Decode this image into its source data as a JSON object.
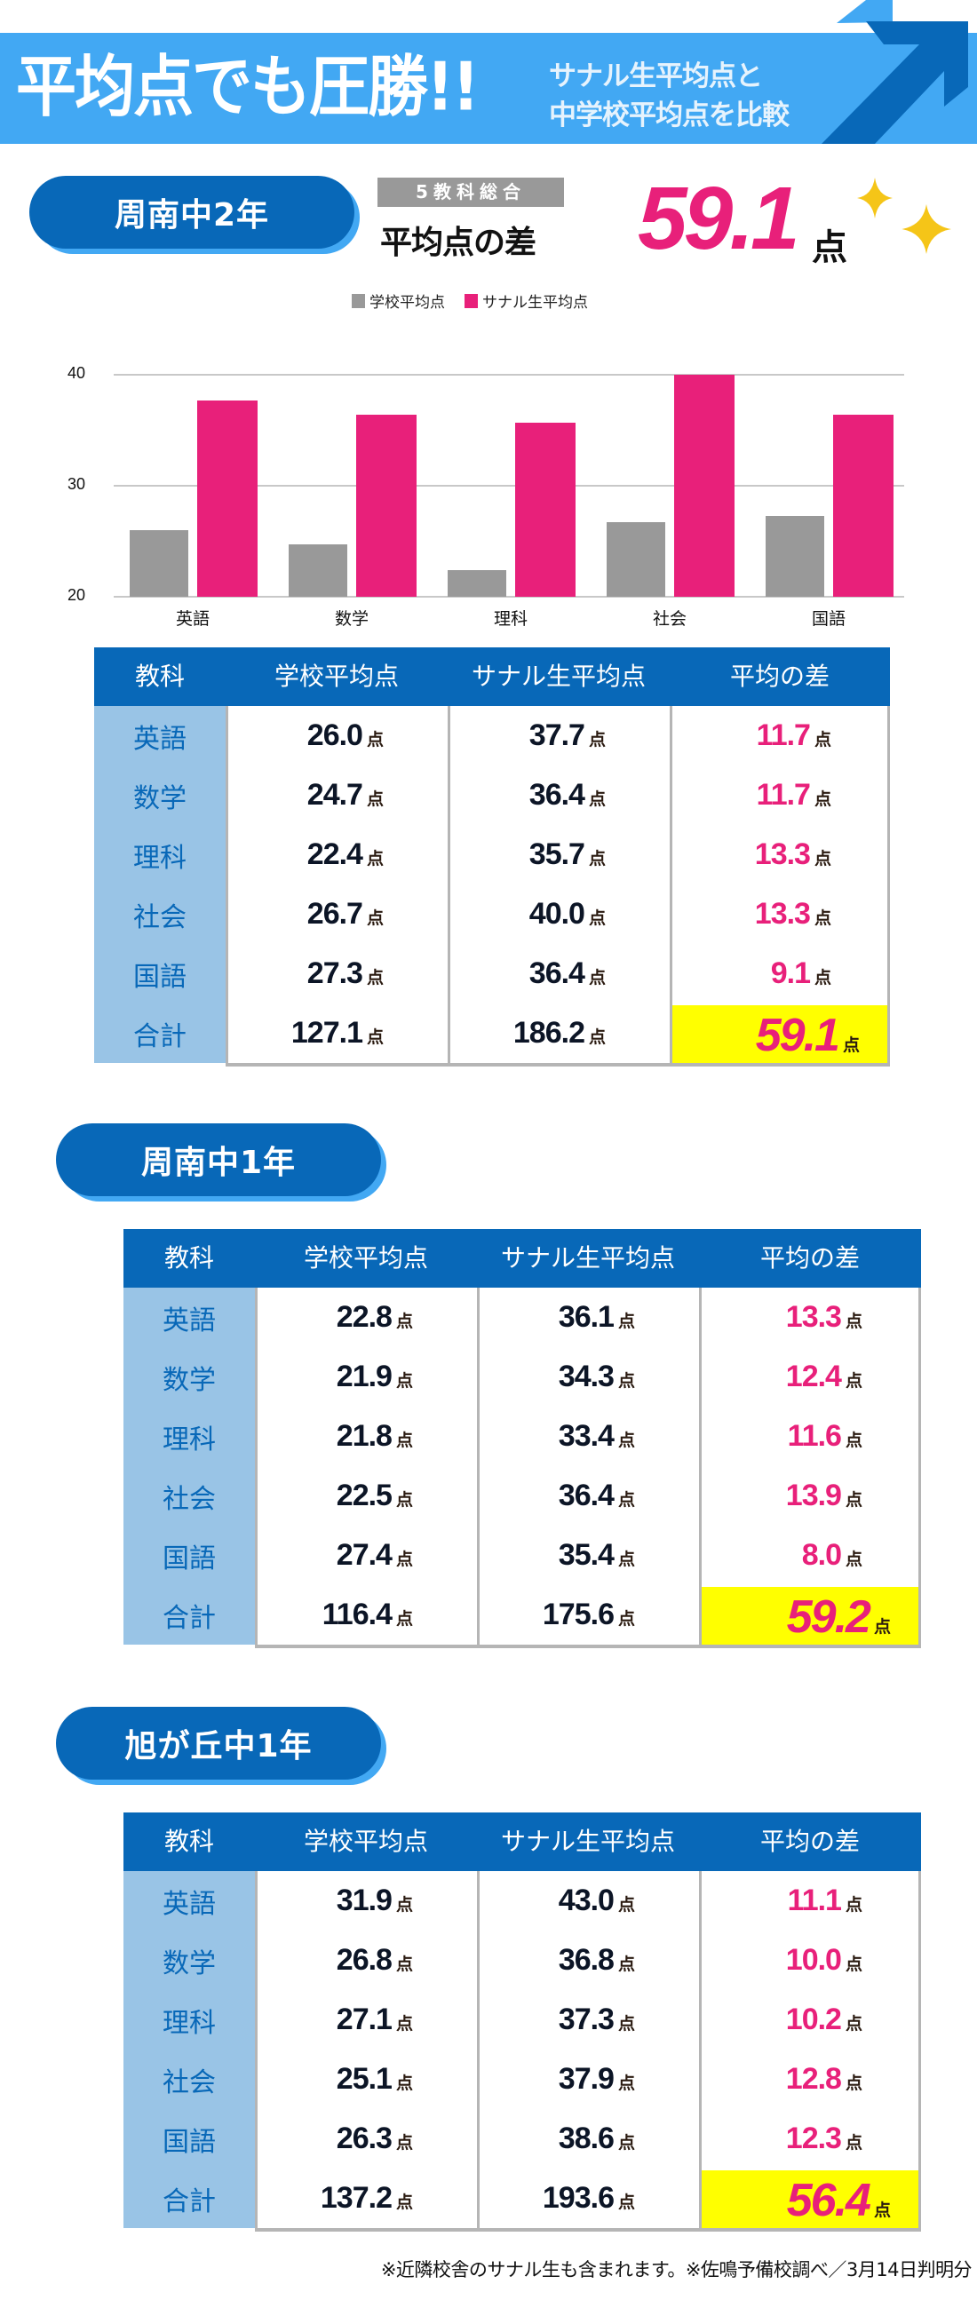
{
  "banner": {
    "title": "平均点でも圧勝!!",
    "subtitle_line1": "サナル生平均点と",
    "subtitle_line2": "中学校平均点を比較",
    "icon": "arrow-up-right-icon"
  },
  "colors": {
    "banner_blue": "#42a8f3",
    "dark_blue": "#0868b8",
    "subject_col_bg": "#99c4e6",
    "school_gray": "#999999",
    "sanaru_pink": "#e8207a",
    "total_highlight": "#ffff00",
    "sparkle_gold": "#f5c518"
  },
  "section1": {
    "school_label": "周南中2年",
    "summary_badge": "5教科総合",
    "summary_label": "平均点の差",
    "summary_value": "59.1",
    "summary_unit": "点",
    "sparkle_icon": "sparkle-icon"
  },
  "chart_data": {
    "type": "bar",
    "title": "",
    "categories": [
      "英語",
      "数学",
      "理科",
      "社会",
      "国語"
    ],
    "series": [
      {
        "name": "学校平均点",
        "color": "#999999",
        "values": [
          26.0,
          24.7,
          22.4,
          26.7,
          27.3
        ]
      },
      {
        "name": "サナル生平均点",
        "color": "#e8207a",
        "values": [
          37.7,
          36.4,
          35.7,
          40.0,
          36.4
        ]
      }
    ],
    "xlabel": "",
    "ylabel": "",
    "ylim": [
      20,
      40
    ],
    "yticks": [
      "40",
      "30",
      "20"
    ],
    "grid": true,
    "legend_position": "top"
  },
  "table_headers": [
    "教科",
    "学校平均点",
    "サナル生平均点",
    "平均の差"
  ],
  "unit": "点",
  "tables": [
    {
      "school_label": "周南中2年",
      "rows": [
        {
          "subject": "英語",
          "school": "26.0",
          "sanaru": "37.7",
          "diff": "11.7"
        },
        {
          "subject": "数学",
          "school": "24.7",
          "sanaru": "36.4",
          "diff": "11.7"
        },
        {
          "subject": "理科",
          "school": "22.4",
          "sanaru": "35.7",
          "diff": "13.3"
        },
        {
          "subject": "社会",
          "school": "26.7",
          "sanaru": "40.0",
          "diff": "13.3"
        },
        {
          "subject": "国語",
          "school": "27.3",
          "sanaru": "36.4",
          "diff": "9.1"
        }
      ],
      "total": {
        "subject": "合計",
        "school": "127.1",
        "sanaru": "186.2",
        "diff": "59.1"
      }
    },
    {
      "school_label": "周南中1年",
      "rows": [
        {
          "subject": "英語",
          "school": "22.8",
          "sanaru": "36.1",
          "diff": "13.3"
        },
        {
          "subject": "数学",
          "school": "21.9",
          "sanaru": "34.3",
          "diff": "12.4"
        },
        {
          "subject": "理科",
          "school": "21.8",
          "sanaru": "33.4",
          "diff": "11.6"
        },
        {
          "subject": "社会",
          "school": "22.5",
          "sanaru": "36.4",
          "diff": "13.9"
        },
        {
          "subject": "国語",
          "school": "27.4",
          "sanaru": "35.4",
          "diff": "8.0"
        }
      ],
      "total": {
        "subject": "合計",
        "school": "116.4",
        "sanaru": "175.6",
        "diff": "59.2"
      }
    },
    {
      "school_label": "旭が丘中1年",
      "rows": [
        {
          "subject": "英語",
          "school": "31.9",
          "sanaru": "43.0",
          "diff": "11.1"
        },
        {
          "subject": "数学",
          "school": "26.8",
          "sanaru": "36.8",
          "diff": "10.0"
        },
        {
          "subject": "理科",
          "school": "27.1",
          "sanaru": "37.3",
          "diff": "10.2"
        },
        {
          "subject": "社会",
          "school": "25.1",
          "sanaru": "37.9",
          "diff": "12.8"
        },
        {
          "subject": "国語",
          "school": "26.3",
          "sanaru": "38.6",
          "diff": "12.3"
        }
      ],
      "total": {
        "subject": "合計",
        "school": "137.2",
        "sanaru": "193.6",
        "diff": "56.4"
      }
    }
  ],
  "footnote": "※近隣校舎のサナル生も含まれます。※佐鳴予備校調べ／3月14日判明分"
}
